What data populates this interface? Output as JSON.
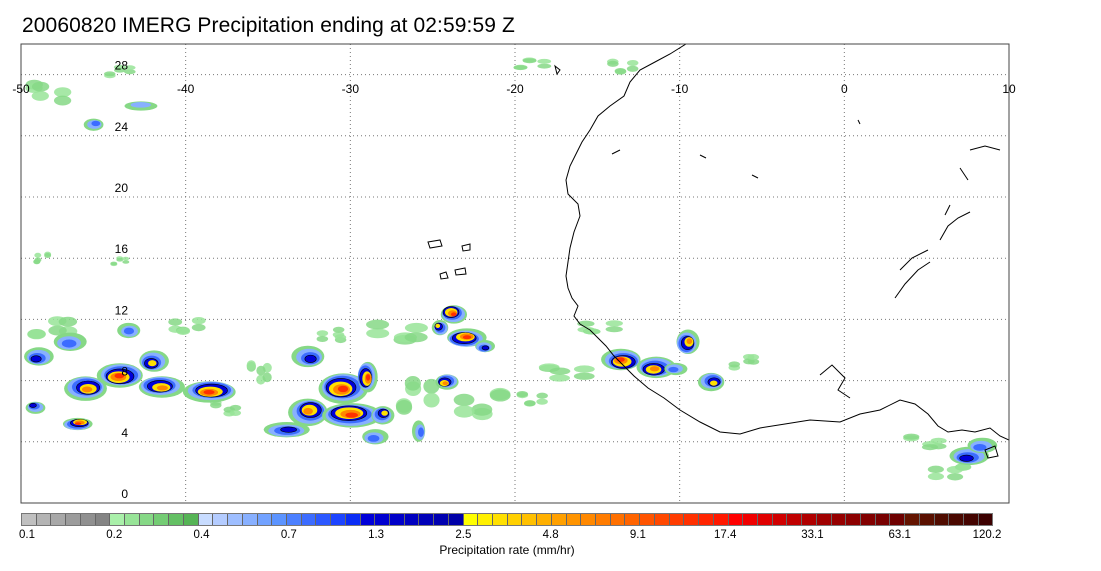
{
  "title": "20060820 IMERG Precipitation ending at 02:59:59 Z",
  "map": {
    "lon_range": [
      -50,
      10
    ],
    "lat_range": [
      0,
      30
    ],
    "lon_ticks": [
      "-50",
      "-40",
      "-30",
      "-20",
      "-10",
      "0",
      "10"
    ],
    "lat_ticks": [
      "0",
      "4",
      "8",
      "12",
      "16",
      "20",
      "24",
      "28"
    ],
    "grid": "dotted",
    "coastline_color": "#000000"
  },
  "colorbar": {
    "label": "Precipitation rate (mm/hr)",
    "tick_labels": [
      "0.1",
      "0.2",
      "0.4",
      "0.7",
      "1.3",
      "2.5",
      "4.8",
      "9.1",
      "17.4",
      "33.1",
      "63.1",
      "120.2"
    ],
    "colors": [
      "#c0c0c0",
      "#b4b4b4",
      "#a8a8a8",
      "#9c9c9c",
      "#909090",
      "#848484",
      "#aaf0aa",
      "#98e498",
      "#86d886",
      "#74cc74",
      "#64c064",
      "#56b456",
      "#c8dcff",
      "#b4ccff",
      "#9ebeff",
      "#88b0ff",
      "#72a2ff",
      "#5c94ff",
      "#4c80ff",
      "#3c6cff",
      "#2c58ff",
      "#1c44ff",
      "#0a2cf5",
      "#0000d8",
      "#0000d0",
      "#0000c8",
      "#0000c0",
      "#0000b8",
      "#0000b0",
      "#0000a8",
      "#ffff00",
      "#fff000",
      "#ffe000",
      "#ffd000",
      "#ffc000",
      "#ffb000",
      "#ffa000",
      "#ff9400",
      "#ff8800",
      "#ff7c00",
      "#ff7000",
      "#ff6400",
      "#ff5400",
      "#ff4800",
      "#ff3c00",
      "#ff3000",
      "#ff2400",
      "#ff1800",
      "#ff0000",
      "#f00000",
      "#e00000",
      "#d00000",
      "#c00000",
      "#b00000",
      "#a00000",
      "#960000",
      "#8c0000",
      "#820000",
      "#780000",
      "#6e0000",
      "#641400",
      "#5a1000",
      "#500c00",
      "#4a0800",
      "#440400",
      "#3c0000"
    ]
  },
  "precip_clusters": [
    {
      "lon": -49,
      "lat": 9.5,
      "rx": 0.9,
      "ry": 0.6,
      "level": 4
    },
    {
      "lon": -47,
      "lat": 10.5,
      "rx": 1.0,
      "ry": 0.6,
      "level": 3
    },
    {
      "lon": -46,
      "lat": 7.5,
      "rx": 1.3,
      "ry": 0.8,
      "level": 6
    },
    {
      "lon": -44,
      "lat": 8.3,
      "rx": 1.4,
      "ry": 0.8,
      "level": 7
    },
    {
      "lon": -49.2,
      "lat": 6.3,
      "rx": 0.6,
      "ry": 0.4,
      "level": 4
    },
    {
      "lon": -46.5,
      "lat": 5.2,
      "rx": 0.9,
      "ry": 0.4,
      "level": 7
    },
    {
      "lon": -42,
      "lat": 9.2,
      "rx": 0.9,
      "ry": 0.7,
      "level": 5
    },
    {
      "lon": -41.5,
      "lat": 7.6,
      "rx": 1.4,
      "ry": 0.7,
      "level": 6
    },
    {
      "lon": -38.5,
      "lat": 7.3,
      "rx": 1.6,
      "ry": 0.7,
      "level": 7
    },
    {
      "lon": -43.5,
      "lat": 11.3,
      "rx": 0.7,
      "ry": 0.5,
      "level": 3
    },
    {
      "lon": -32.5,
      "lat": 9.5,
      "rx": 1.0,
      "ry": 0.7,
      "level": 4
    },
    {
      "lon": -30.5,
      "lat": 7.5,
      "rx": 1.5,
      "ry": 1.0,
      "level": 7
    },
    {
      "lon": -32.5,
      "lat": 6.0,
      "rx": 1.2,
      "ry": 0.9,
      "level": 6
    },
    {
      "lon": -30.0,
      "lat": 5.8,
      "rx": 1.8,
      "ry": 0.8,
      "level": 8
    },
    {
      "lon": -29.0,
      "lat": 8.2,
      "rx": 0.6,
      "ry": 1.0,
      "level": 8
    },
    {
      "lon": -33.8,
      "lat": 4.8,
      "rx": 1.4,
      "ry": 0.5,
      "level": 4
    },
    {
      "lon": -28.0,
      "lat": 5.8,
      "rx": 0.7,
      "ry": 0.6,
      "level": 5
    },
    {
      "lon": -28.5,
      "lat": 4.3,
      "rx": 0.8,
      "ry": 0.5,
      "level": 3
    },
    {
      "lon": -25.8,
      "lat": 4.7,
      "rx": 0.4,
      "ry": 0.7,
      "level": 3
    },
    {
      "lon": -24.2,
      "lat": 7.9,
      "rx": 0.7,
      "ry": 0.5,
      "level": 6
    },
    {
      "lon": -23.8,
      "lat": 12.4,
      "rx": 0.8,
      "ry": 0.6,
      "level": 8
    },
    {
      "lon": -23.0,
      "lat": 10.8,
      "rx": 1.2,
      "ry": 0.6,
      "level": 7
    },
    {
      "lon": -24.6,
      "lat": 11.5,
      "rx": 0.5,
      "ry": 0.5,
      "level": 5
    },
    {
      "lon": -21.8,
      "lat": 10.2,
      "rx": 0.6,
      "ry": 0.4,
      "level": 4
    },
    {
      "lon": -13.5,
      "lat": 9.3,
      "rx": 1.2,
      "ry": 0.7,
      "level": 7
    },
    {
      "lon": -11.5,
      "lat": 8.8,
      "rx": 1.2,
      "ry": 0.7,
      "level": 6
    },
    {
      "lon": -9.5,
      "lat": 10.5,
      "rx": 0.7,
      "ry": 0.8,
      "level": 6
    },
    {
      "lon": -8.0,
      "lat": 7.9,
      "rx": 0.8,
      "ry": 0.6,
      "level": 5
    },
    {
      "lon": -10.3,
      "lat": 8.7,
      "rx": 0.7,
      "ry": 0.4,
      "level": 3
    },
    {
      "lon": 7.5,
      "lat": 3.0,
      "rx": 1.2,
      "ry": 0.6,
      "level": 4
    },
    {
      "lon": 8.3,
      "lat": 3.7,
      "rx": 0.9,
      "ry": 0.5,
      "level": 3
    },
    {
      "lon": -45.5,
      "lat": 24.8,
      "rx": 0.6,
      "ry": 0.4,
      "level": 3
    },
    {
      "lon": -42.8,
      "lat": 26.0,
      "rx": 1.0,
      "ry": 0.3,
      "level": 2
    }
  ],
  "light_precip": [
    {
      "lon": -48,
      "lat": 11.5,
      "rx": 1.6,
      "ry": 0.8
    },
    {
      "lon": -40,
      "lat": 11.6,
      "rx": 1.2,
      "ry": 0.6
    },
    {
      "lon": -37.5,
      "lat": 6.2,
      "rx": 1.0,
      "ry": 0.5
    },
    {
      "lon": -35.5,
      "lat": 8.5,
      "rx": 0.8,
      "ry": 0.8
    },
    {
      "lon": -31.0,
      "lat": 11.0,
      "rx": 1.0,
      "ry": 0.5
    },
    {
      "lon": -27.0,
      "lat": 11.2,
      "rx": 2.0,
      "ry": 0.8
    },
    {
      "lon": -26.0,
      "lat": 7.0,
      "rx": 1.4,
      "ry": 1.2
    },
    {
      "lon": -22.0,
      "lat": 6.5,
      "rx": 1.8,
      "ry": 1.0
    },
    {
      "lon": -19.0,
      "lat": 6.8,
      "rx": 1.0,
      "ry": 0.5
    },
    {
      "lon": -17.0,
      "lat": 8.5,
      "rx": 1.8,
      "ry": 0.6
    },
    {
      "lon": -15.0,
      "lat": 11.5,
      "rx": 1.5,
      "ry": 0.5
    },
    {
      "lon": -6.0,
      "lat": 9.2,
      "rx": 1.0,
      "ry": 0.5
    },
    {
      "lon": 5.0,
      "lat": 4.0,
      "rx": 1.4,
      "ry": 0.5
    },
    {
      "lon": 6.5,
      "lat": 2.0,
      "rx": 1.4,
      "ry": 0.6
    },
    {
      "lon": -48.5,
      "lat": 26.8,
      "rx": 1.5,
      "ry": 0.8
    },
    {
      "lon": -44.0,
      "lat": 28.2,
      "rx": 1.0,
      "ry": 0.4
    },
    {
      "lon": -48.8,
      "lat": 16.0,
      "rx": 0.6,
      "ry": 0.4
    },
    {
      "lon": -44.0,
      "lat": 15.8,
      "rx": 0.6,
      "ry": 0.3
    },
    {
      "lon": -19.0,
      "lat": 28.7,
      "rx": 1.2,
      "ry": 0.4
    },
    {
      "lon": -13.5,
      "lat": 28.5,
      "rx": 1.0,
      "ry": 0.5
    }
  ]
}
